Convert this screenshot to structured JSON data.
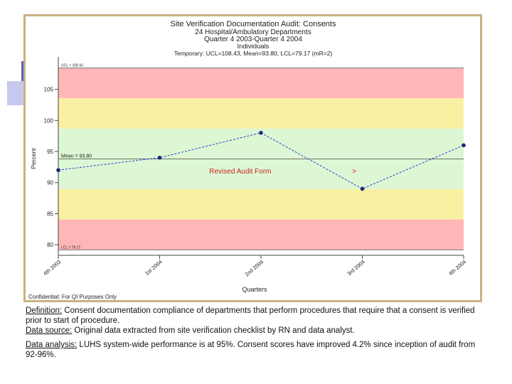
{
  "notes": {
    "definition_label": "Definition:",
    "definition_text": " Consent documentation compliance of departments that perform procedures that require that a consent is verified prior to start of procedure.",
    "source_label": "Data source:",
    "source_text": " Original data extracted from site verification checklist by RN and data analyst.",
    "analysis_label": "Data analysis:",
    "analysis_text": " LUHS system-wide performance is at 95%. Consent  scores have  improved 4.2% since inception of audit from 92-96%."
  },
  "chart_data": {
    "type": "line",
    "title": "Site Verification Documentation Audit: Consents",
    "subtitle_lines": [
      "24 Hospital/Ambulatory Departments",
      "Quarter 4 2003-Quarter 4 2004",
      "Individuals",
      "Temporary:  UCL=108.43,  Mean=93.80,  LCL=79.17  (mR=2)"
    ],
    "xlabel": "Quarters",
    "ylabel": "Percent",
    "categories": [
      "4th 2003",
      "1st 2004",
      "2nd 2004",
      "3rd 2004",
      "4th 2004"
    ],
    "values": [
      92.0,
      94.0,
      98.0,
      89.0,
      96.0
    ],
    "series_color": "#2a3fd4",
    "ylim": [
      78.3,
      109.3
    ],
    "yticks": [
      80,
      85,
      90,
      95,
      100,
      105
    ],
    "ytick_labels": [
      "80",
      "85",
      "90",
      "95",
      "100",
      "105"
    ],
    "ucl": 108.43,
    "mean": 93.8,
    "lcl": 79.17,
    "ucl_label": "UCL = 108.43",
    "mean_label": "Mean = 93.80",
    "lcl_label": "LCL = 79.17",
    "zones": [
      {
        "from": 103.55,
        "to": 108.43,
        "color": "#ffb6b6"
      },
      {
        "from": 98.68,
        "to": 103.55,
        "color": "#f9f0a2"
      },
      {
        "from": 88.92,
        "to": 98.68,
        "color": "#ddf7d4"
      },
      {
        "from": 84.05,
        "to": 88.92,
        "color": "#f9f0a2"
      },
      {
        "from": 79.17,
        "to": 84.05,
        "color": "#ffb6b6"
      }
    ],
    "annotation": {
      "text": "Revised Audit Form",
      "marker": ">",
      "at_y": 91.8,
      "x_from": 1.7,
      "x_to": 2.9,
      "color": "#cc2222"
    },
    "footer": "Confidential:  For QI Purposes Only"
  }
}
